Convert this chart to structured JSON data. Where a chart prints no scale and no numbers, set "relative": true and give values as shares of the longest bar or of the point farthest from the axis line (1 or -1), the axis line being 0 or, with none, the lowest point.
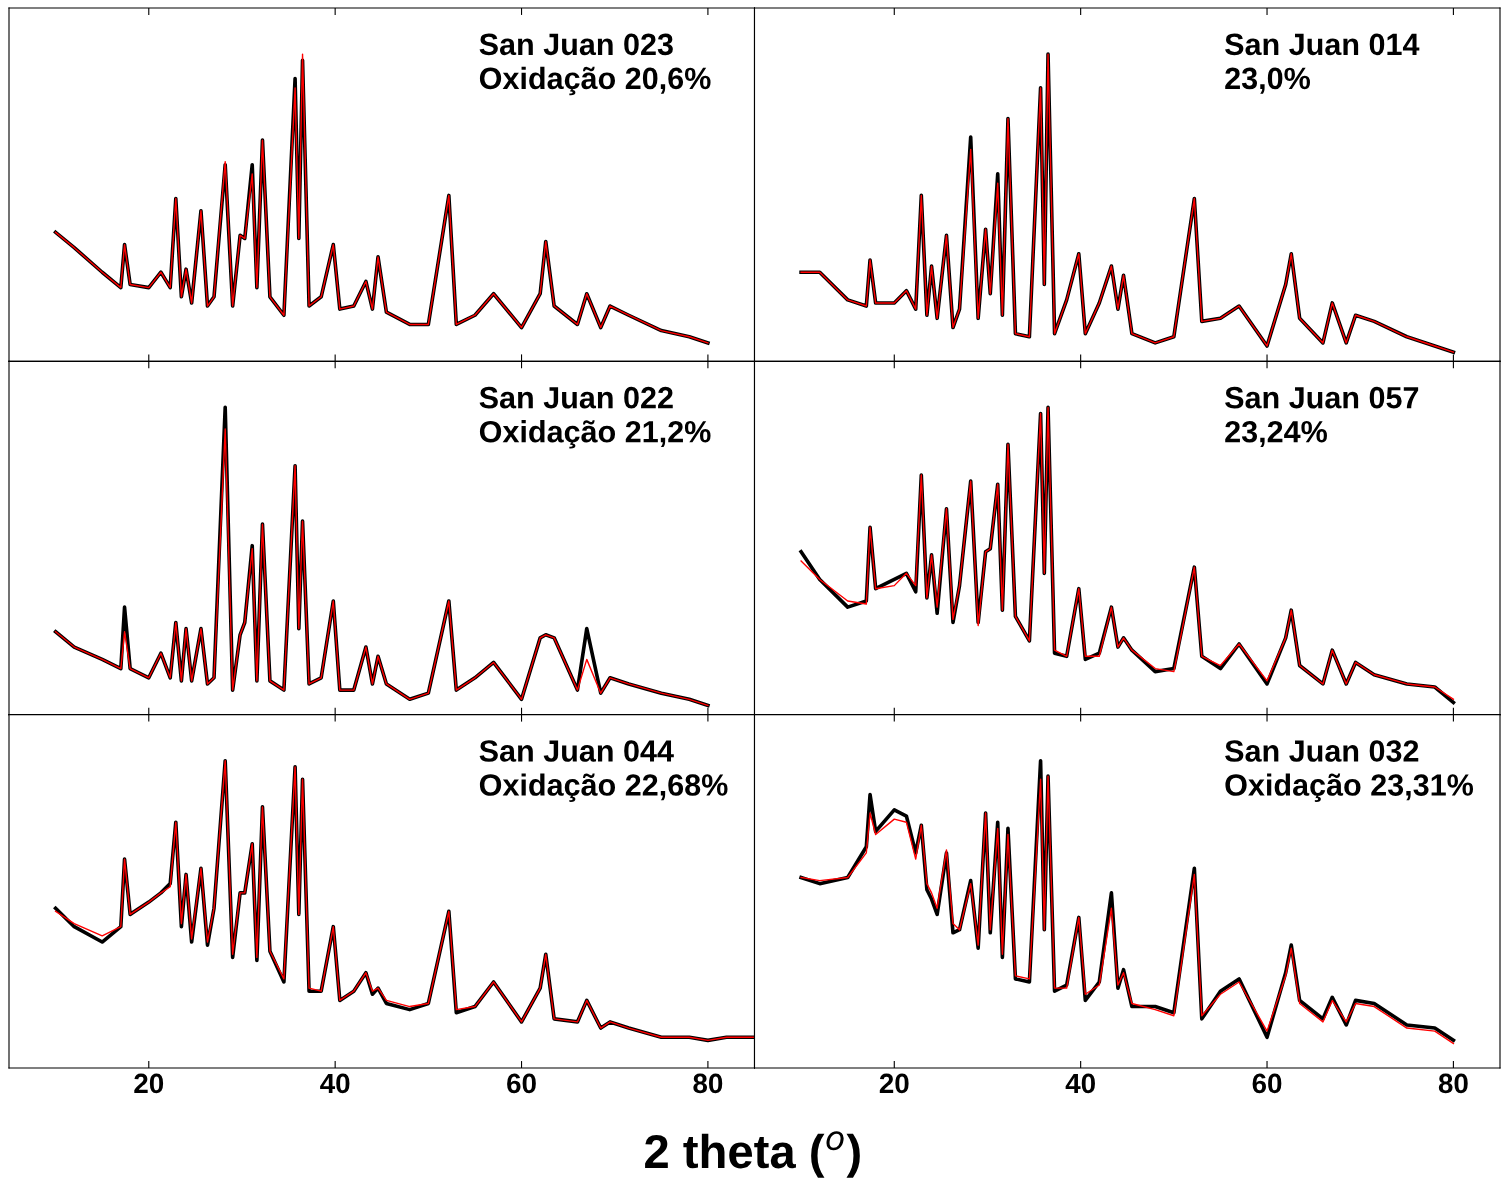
{
  "chart_data": [
    {
      "type": "line",
      "title": "San Juan 023",
      "subtitle": "Oxidação 20,6%",
      "relative": true,
      "xlim": [
        5,
        85
      ],
      "xticks": [
        20,
        40,
        60,
        80
      ],
      "tick_labels": false,
      "grid": false,
      "legend": false,
      "x": [
        10,
        12,
        15,
        17,
        17.4,
        18,
        20,
        21.3,
        22.3,
        22.9,
        23.5,
        24,
        24.6,
        25.6,
        26.3,
        27,
        28.2,
        29,
        29.8,
        30.3,
        31.1,
        31.6,
        32.2,
        33,
        34.5,
        35.7,
        36.1,
        36.5,
        37.2,
        38.5,
        39.8,
        40.5,
        42,
        43.3,
        44,
        44.6,
        45.5,
        48,
        50,
        52.2,
        53,
        55,
        57,
        60,
        62,
        62.6,
        63.5,
        66,
        67,
        68.5,
        69.5,
        71.5,
        75,
        78,
        80
      ],
      "series": [
        {
          "color": "#000000",
          "values": [
            0.42,
            0.37,
            0.29,
            0.24,
            0.38,
            0.25,
            0.24,
            0.29,
            0.24,
            0.53,
            0.21,
            0.3,
            0.19,
            0.49,
            0.18,
            0.21,
            0.64,
            0.18,
            0.41,
            0.4,
            0.64,
            0.24,
            0.72,
            0.21,
            0.15,
            0.92,
            0.4,
            0.98,
            0.18,
            0.21,
            0.38,
            0.17,
            0.18,
            0.26,
            0.17,
            0.34,
            0.16,
            0.12,
            0.12,
            0.54,
            0.12,
            0.15,
            0.22,
            0.11,
            0.22,
            0.39,
            0.18,
            0.12,
            0.22,
            0.11,
            0.18,
            0.15,
            0.1,
            0.08,
            0.06
          ]
        },
        {
          "color": "#ff0000",
          "values": [
            0.42,
            0.37,
            0.29,
            0.24,
            0.38,
            0.25,
            0.24,
            0.29,
            0.24,
            0.53,
            0.21,
            0.3,
            0.19,
            0.49,
            0.18,
            0.21,
            0.65,
            0.18,
            0.41,
            0.4,
            0.61,
            0.24,
            0.72,
            0.21,
            0.15,
            0.89,
            0.4,
            1.0,
            0.18,
            0.21,
            0.38,
            0.17,
            0.18,
            0.26,
            0.17,
            0.34,
            0.16,
            0.12,
            0.12,
            0.54,
            0.12,
            0.15,
            0.22,
            0.11,
            0.22,
            0.39,
            0.18,
            0.12,
            0.22,
            0.11,
            0.18,
            0.15,
            0.1,
            0.08,
            0.06
          ]
        }
      ]
    },
    {
      "type": "line",
      "title": "San Juan 014",
      "subtitle": "23,0%",
      "relative": true,
      "xlim": [
        5,
        85
      ],
      "xticks": [
        20,
        40,
        60,
        80
      ],
      "tick_labels": false,
      "grid": false,
      "legend": false,
      "x": [
        10,
        12,
        15,
        17,
        17.4,
        18,
        20,
        21.3,
        22.3,
        22.9,
        23.5,
        24,
        24.6,
        25.6,
        26.3,
        27,
        28.2,
        29,
        29.8,
        30.3,
        31.1,
        31.6,
        32.2,
        33,
        34.5,
        35.7,
        36.1,
        36.5,
        37.2,
        38.5,
        39.8,
        40.5,
        42,
        43.3,
        44,
        44.6,
        45.5,
        48,
        50,
        52.2,
        53,
        55,
        57,
        60,
        62,
        62.6,
        63.5,
        66,
        67,
        68.5,
        69.5,
        71.5,
        75,
        78,
        80
      ],
      "series": [
        {
          "color": "#000000",
          "values": [
            0.29,
            0.29,
            0.2,
            0.18,
            0.33,
            0.19,
            0.19,
            0.23,
            0.17,
            0.54,
            0.15,
            0.31,
            0.14,
            0.41,
            0.11,
            0.17,
            0.73,
            0.14,
            0.43,
            0.22,
            0.61,
            0.15,
            0.79,
            0.09,
            0.08,
            0.89,
            0.25,
            1.0,
            0.09,
            0.2,
            0.35,
            0.09,
            0.19,
            0.31,
            0.17,
            0.28,
            0.09,
            0.06,
            0.08,
            0.53,
            0.13,
            0.14,
            0.18,
            0.05,
            0.25,
            0.35,
            0.14,
            0.06,
            0.19,
            0.06,
            0.15,
            0.13,
            0.08,
            0.05,
            0.03
          ]
        },
        {
          "color": "#ff0000",
          "values": [
            0.29,
            0.29,
            0.2,
            0.18,
            0.33,
            0.19,
            0.19,
            0.23,
            0.17,
            0.54,
            0.15,
            0.31,
            0.14,
            0.41,
            0.11,
            0.17,
            0.69,
            0.14,
            0.43,
            0.22,
            0.58,
            0.15,
            0.79,
            0.09,
            0.08,
            0.89,
            0.25,
            1.0,
            0.09,
            0.2,
            0.35,
            0.09,
            0.19,
            0.31,
            0.17,
            0.28,
            0.09,
            0.06,
            0.08,
            0.53,
            0.13,
            0.14,
            0.18,
            0.05,
            0.25,
            0.35,
            0.14,
            0.06,
            0.19,
            0.06,
            0.15,
            0.13,
            0.08,
            0.05,
            0.03
          ]
        }
      ]
    },
    {
      "type": "line",
      "title": "San Juan 022",
      "subtitle": "Oxidação 21,2%",
      "relative": true,
      "xlim": [
        5,
        85
      ],
      "xticks": [
        20,
        40,
        60,
        80
      ],
      "tick_labels": false,
      "grid": false,
      "legend": false,
      "x": [
        10,
        12,
        15,
        17,
        17.4,
        18,
        20,
        21.3,
        22.3,
        22.9,
        23.5,
        24,
        24.6,
        25.6,
        26.3,
        27,
        28.2,
        29,
        29.8,
        30.3,
        31.1,
        31.6,
        32.2,
        33,
        34.5,
        35.7,
        36.1,
        36.5,
        37.2,
        38.5,
        39.8,
        40.5,
        42,
        43.3,
        44,
        44.6,
        45.5,
        48,
        50,
        52.2,
        53,
        55,
        57,
        60,
        62,
        62.6,
        63.5,
        66,
        67,
        68.5,
        69.5,
        71.5,
        75,
        78,
        80
      ],
      "series": [
        {
          "color": "#000000",
          "values": [
            0.27,
            0.22,
            0.18,
            0.15,
            0.35,
            0.15,
            0.12,
            0.2,
            0.12,
            0.3,
            0.11,
            0.28,
            0.11,
            0.28,
            0.1,
            0.12,
            1.0,
            0.08,
            0.26,
            0.3,
            0.55,
            0.11,
            0.62,
            0.11,
            0.08,
            0.81,
            0.28,
            0.63,
            0.1,
            0.12,
            0.37,
            0.08,
            0.08,
            0.22,
            0.1,
            0.19,
            0.1,
            0.05,
            0.07,
            0.37,
            0.08,
            0.12,
            0.17,
            0.05,
            0.25,
            0.26,
            0.25,
            0.08,
            0.28,
            0.07,
            0.12,
            0.1,
            0.07,
            0.05,
            0.03
          ]
        },
        {
          "color": "#ff0000",
          "values": [
            0.27,
            0.22,
            0.18,
            0.15,
            0.27,
            0.15,
            0.12,
            0.2,
            0.12,
            0.3,
            0.11,
            0.28,
            0.11,
            0.28,
            0.1,
            0.12,
            0.93,
            0.08,
            0.26,
            0.3,
            0.54,
            0.11,
            0.62,
            0.11,
            0.08,
            0.81,
            0.28,
            0.63,
            0.1,
            0.12,
            0.37,
            0.08,
            0.08,
            0.22,
            0.1,
            0.19,
            0.1,
            0.05,
            0.07,
            0.37,
            0.08,
            0.12,
            0.17,
            0.05,
            0.25,
            0.26,
            0.25,
            0.08,
            0.18,
            0.07,
            0.12,
            0.1,
            0.07,
            0.05,
            0.03
          ]
        }
      ]
    },
    {
      "type": "line",
      "title": "San Juan 057",
      "subtitle": "23,24%",
      "relative": true,
      "xlim": [
        5,
        85
      ],
      "xticks": [
        20,
        40,
        60,
        80
      ],
      "tick_labels": false,
      "grid": false,
      "legend": false,
      "x": [
        10,
        12,
        15,
        17,
        17.4,
        18,
        20,
        21.3,
        22.3,
        22.9,
        23.5,
        24,
        24.6,
        25.6,
        26.3,
        27,
        28.2,
        29,
        29.8,
        30.3,
        31.1,
        31.6,
        32.2,
        33,
        34.5,
        35.7,
        36.1,
        36.5,
        37.2,
        38.5,
        39.8,
        40.5,
        42,
        43.3,
        44,
        44.6,
        45.5,
        48,
        50,
        52.2,
        53,
        55,
        57,
        60,
        62,
        62.6,
        63.5,
        66,
        67,
        68.5,
        69.5,
        71.5,
        75,
        78,
        80
      ],
      "series": [
        {
          "color": "#000000",
          "values": [
            0.53,
            0.44,
            0.35,
            0.37,
            0.61,
            0.41,
            0.44,
            0.46,
            0.4,
            0.78,
            0.38,
            0.52,
            0.33,
            0.67,
            0.3,
            0.42,
            0.76,
            0.3,
            0.53,
            0.54,
            0.75,
            0.34,
            0.88,
            0.32,
            0.24,
            0.98,
            0.46,
            1.0,
            0.2,
            0.19,
            0.41,
            0.18,
            0.2,
            0.35,
            0.22,
            0.25,
            0.21,
            0.14,
            0.15,
            0.48,
            0.19,
            0.15,
            0.23,
            0.1,
            0.25,
            0.34,
            0.16,
            0.1,
            0.21,
            0.1,
            0.17,
            0.13,
            0.1,
            0.09,
            0.04
          ]
        },
        {
          "color": "#ff0000",
          "values": [
            0.5,
            0.44,
            0.37,
            0.36,
            0.61,
            0.41,
            0.42,
            0.46,
            0.42,
            0.78,
            0.38,
            0.52,
            0.35,
            0.67,
            0.31,
            0.42,
            0.76,
            0.29,
            0.53,
            0.54,
            0.75,
            0.34,
            0.88,
            0.32,
            0.24,
            0.98,
            0.46,
            1.0,
            0.21,
            0.19,
            0.41,
            0.19,
            0.19,
            0.35,
            0.22,
            0.25,
            0.21,
            0.15,
            0.14,
            0.48,
            0.19,
            0.16,
            0.23,
            0.11,
            0.25,
            0.34,
            0.16,
            0.1,
            0.21,
            0.1,
            0.17,
            0.13,
            0.1,
            0.09,
            0.05
          ]
        }
      ]
    },
    {
      "type": "line",
      "title": "San Juan 044",
      "subtitle": "Oxidação 22,68%",
      "xlabel": "2 theta ($^{o}$)",
      "relative": true,
      "xlim": [
        5,
        85
      ],
      "xticks": [
        20,
        40,
        60,
        80
      ],
      "tick_labels": "x",
      "grid": false,
      "legend": false,
      "x": [
        10,
        12,
        15,
        17,
        17.4,
        18,
        20,
        21.3,
        22.3,
        22.9,
        23.5,
        24,
        24.6,
        25.6,
        26.3,
        27,
        28.2,
        29,
        29.8,
        30.3,
        31.1,
        31.6,
        32.2,
        33,
        34.5,
        35.7,
        36.1,
        36.5,
        37.2,
        38.5,
        39.8,
        40.5,
        42,
        43.3,
        44,
        44.6,
        45.5,
        48,
        50,
        52.2,
        53,
        55,
        57,
        60,
        62,
        62.6,
        63.5,
        66,
        67,
        68.5,
        69.5,
        71.5,
        75,
        78,
        80,
        82,
        85
      ],
      "series": [
        {
          "color": "#000000",
          "values": [
            0.52,
            0.46,
            0.41,
            0.46,
            0.68,
            0.5,
            0.54,
            0.57,
            0.6,
            0.8,
            0.46,
            0.63,
            0.41,
            0.65,
            0.4,
            0.52,
            1.0,
            0.36,
            0.57,
            0.57,
            0.73,
            0.35,
            0.85,
            0.38,
            0.28,
            0.98,
            0.5,
            0.94,
            0.25,
            0.25,
            0.46,
            0.22,
            0.25,
            0.31,
            0.24,
            0.26,
            0.21,
            0.19,
            0.21,
            0.51,
            0.18,
            0.2,
            0.28,
            0.15,
            0.26,
            0.37,
            0.16,
            0.15,
            0.22,
            0.13,
            0.15,
            0.13,
            0.1,
            0.1,
            0.09,
            0.1,
            0.1
          ]
        },
        {
          "color": "#ff0000",
          "values": [
            0.51,
            0.47,
            0.43,
            0.46,
            0.68,
            0.5,
            0.54,
            0.57,
            0.59,
            0.8,
            0.47,
            0.63,
            0.42,
            0.65,
            0.41,
            0.52,
            1.0,
            0.37,
            0.57,
            0.57,
            0.73,
            0.36,
            0.85,
            0.38,
            0.29,
            0.98,
            0.5,
            0.94,
            0.26,
            0.25,
            0.46,
            0.22,
            0.25,
            0.31,
            0.25,
            0.26,
            0.22,
            0.2,
            0.21,
            0.51,
            0.19,
            0.2,
            0.28,
            0.15,
            0.26,
            0.37,
            0.16,
            0.15,
            0.22,
            0.13,
            0.15,
            0.13,
            0.1,
            0.1,
            0.09,
            0.1,
            0.1
          ]
        }
      ]
    },
    {
      "type": "line",
      "title": "San Juan 032",
      "subtitle": "Oxidação 23,31%",
      "relative": true,
      "xlim": [
        5,
        85
      ],
      "xticks": [
        20,
        40,
        60,
        80
      ],
      "tick_labels": "x",
      "grid": false,
      "legend": false,
      "x": [
        10,
        12,
        15,
        17,
        17.4,
        18,
        20,
        21.3,
        22.3,
        22.9,
        23.5,
        24,
        24.6,
        25.6,
        26.3,
        27,
        28.2,
        29,
        29.8,
        30.3,
        31.1,
        31.6,
        32.2,
        33,
        34.5,
        35.7,
        36.1,
        36.5,
        37.2,
        38.5,
        39.8,
        40.5,
        42,
        43.3,
        44,
        44.6,
        45.5,
        48,
        50,
        52.2,
        53,
        55,
        57,
        60,
        62,
        62.6,
        63.5,
        66,
        67,
        68.5,
        69.5,
        71.5,
        75,
        78,
        80
      ],
      "series": [
        {
          "color": "#000000",
          "values": [
            0.62,
            0.6,
            0.62,
            0.72,
            0.89,
            0.77,
            0.84,
            0.82,
            0.7,
            0.79,
            0.58,
            0.55,
            0.5,
            0.7,
            0.44,
            0.45,
            0.61,
            0.39,
            0.83,
            0.44,
            0.8,
            0.36,
            0.78,
            0.29,
            0.28,
            1.0,
            0.45,
            0.95,
            0.25,
            0.27,
            0.49,
            0.22,
            0.28,
            0.57,
            0.26,
            0.32,
            0.2,
            0.2,
            0.18,
            0.65,
            0.16,
            0.25,
            0.29,
            0.1,
            0.31,
            0.4,
            0.22,
            0.16,
            0.23,
            0.14,
            0.22,
            0.21,
            0.14,
            0.13,
            0.09
          ]
        },
        {
          "color": "#ff0000",
          "values": [
            0.62,
            0.61,
            0.62,
            0.7,
            0.83,
            0.76,
            0.81,
            0.8,
            0.68,
            0.79,
            0.6,
            0.57,
            0.52,
            0.71,
            0.47,
            0.45,
            0.6,
            0.4,
            0.83,
            0.45,
            0.78,
            0.37,
            0.76,
            0.3,
            0.29,
            0.94,
            0.45,
            0.95,
            0.26,
            0.26,
            0.49,
            0.24,
            0.27,
            0.52,
            0.27,
            0.31,
            0.21,
            0.19,
            0.17,
            0.63,
            0.17,
            0.24,
            0.28,
            0.12,
            0.3,
            0.39,
            0.21,
            0.15,
            0.22,
            0.15,
            0.21,
            0.2,
            0.13,
            0.12,
            0.08
          ]
        }
      ]
    }
  ]
}
